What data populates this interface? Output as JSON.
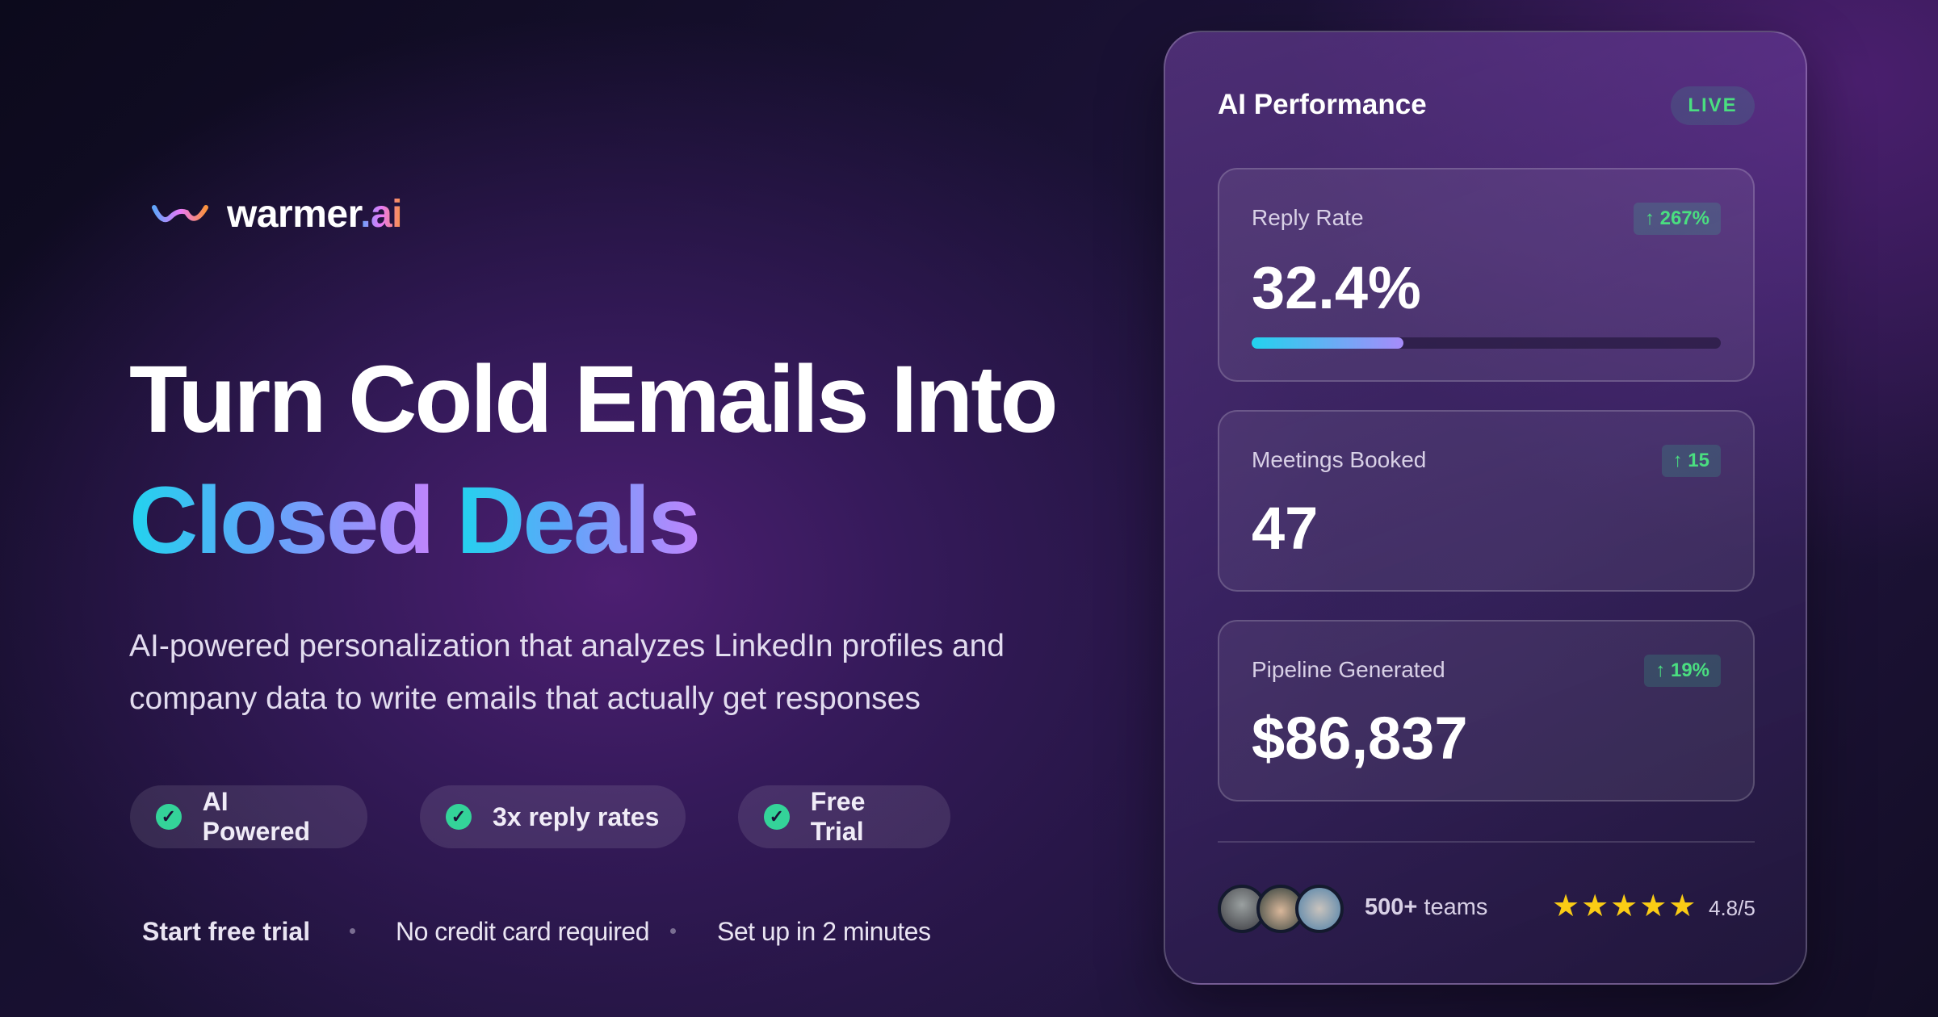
{
  "brand": {
    "name": "warmer",
    "tld": ".ai"
  },
  "hero": {
    "line1": "Turn Cold Emails Into",
    "line2a": "Closed",
    "line2b": "Deals",
    "subtitle_1": "AI-powered personalization that analyzes LinkedIn profiles and",
    "subtitle_2": "company data to write emails that actually get responses"
  },
  "features": [
    "AI Powered",
    "3x reply rates",
    "Free Trial"
  ],
  "footer": [
    "Start free trial",
    "No credit card required",
    "Set up in 2 minutes"
  ],
  "card": {
    "title": "AI Performance",
    "live": "LIVE",
    "metrics": [
      {
        "label": "Reply Rate",
        "value": "32.4%",
        "change": "↑ 267%",
        "progress": 0.324
      },
      {
        "label": "Meetings Booked",
        "value": "47",
        "change": "↑ 15"
      },
      {
        "label": "Pipeline Generated",
        "value": "$86,837",
        "change": "↑ 19%"
      }
    ],
    "social": {
      "count": "500+",
      "teams": "teams",
      "stars": "★★★★★",
      "rating": "4.8/5",
      "rating_value": 4.8
    }
  },
  "colors": {
    "accent_green": "#4ade80",
    "gradient_start": "#22d3ee",
    "gradient_end": "#c084fc",
    "star": "#facc15"
  }
}
